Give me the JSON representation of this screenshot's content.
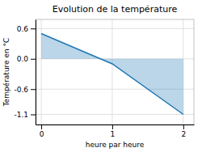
{
  "chart_data": {
    "type": "area",
    "title": "Evolution de la température",
    "xlabel": "heure par heure",
    "ylabel": "Température en °C",
    "x": [
      0,
      1,
      2
    ],
    "values": [
      0.5,
      -0.1,
      -1.1
    ],
    "xlim": [
      -0.08,
      2.15
    ],
    "ylim": [
      -1.3,
      0.78
    ],
    "xticks": [
      0,
      1,
      2
    ],
    "yticks": [
      0.6,
      {
        "value": 0.0,
        "label": "0.0"
      },
      -0.6,
      -1.1
    ],
    "grid": true
  }
}
